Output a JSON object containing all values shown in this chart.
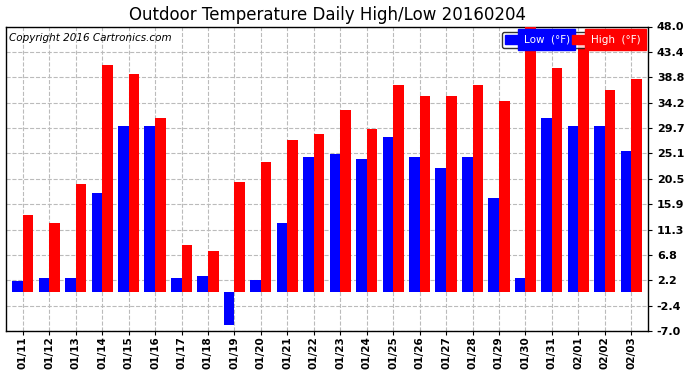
{
  "title": "Outdoor Temperature Daily High/Low 20160204",
  "copyright": "Copyright 2016 Cartronics.com",
  "legend_low": "Low  (°F)",
  "legend_high": "High  (°F)",
  "dates": [
    "01/11",
    "01/12",
    "01/13",
    "01/14",
    "01/15",
    "01/16",
    "01/17",
    "01/18",
    "01/19",
    "01/20",
    "01/21",
    "01/22",
    "01/23",
    "01/24",
    "01/25",
    "01/26",
    "01/27",
    "01/28",
    "01/29",
    "01/30",
    "01/31",
    "02/01",
    "02/02",
    "02/03"
  ],
  "high": [
    14.0,
    12.5,
    19.5,
    41.0,
    39.5,
    31.5,
    8.5,
    7.5,
    20.0,
    23.5,
    27.5,
    28.5,
    33.0,
    29.5,
    37.5,
    35.5,
    35.5,
    37.5,
    34.5,
    49.0,
    40.5,
    46.5,
    36.5,
    38.5
  ],
  "low": [
    2.0,
    2.5,
    2.5,
    18.0,
    30.0,
    30.0,
    2.5,
    3.0,
    -6.0,
    2.2,
    12.5,
    24.5,
    25.0,
    24.0,
    28.0,
    24.5,
    22.5,
    24.5,
    17.0,
    2.5,
    31.5,
    30.0,
    30.0,
    25.5
  ],
  "ylim": [
    -7.0,
    48.0
  ],
  "yticks": [
    -7.0,
    -2.4,
    2.2,
    6.8,
    11.3,
    15.9,
    20.5,
    25.1,
    29.7,
    34.2,
    38.8,
    43.4,
    48.0
  ],
  "bar_width": 0.4,
  "high_color": "#FF0000",
  "low_color": "#0000FF",
  "background_color": "#FFFFFF",
  "plot_bg_color": "#FFFFFF",
  "grid_color": "#BBBBBB",
  "title_fontsize": 12,
  "tick_fontsize": 8,
  "copyright_fontsize": 7.5
}
